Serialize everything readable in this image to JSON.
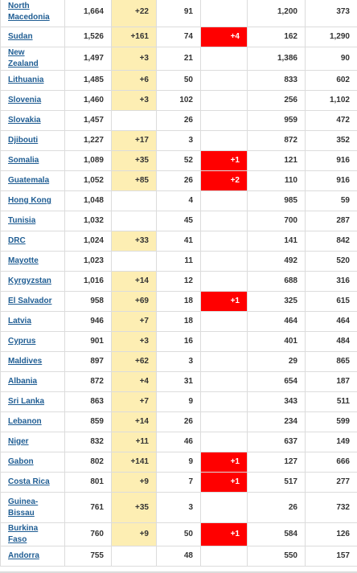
{
  "rows": [
    {
      "country": "North Macedonia",
      "total_cases": "1,664",
      "new_cases": "+22",
      "total_deaths": "91",
      "new_deaths": "",
      "total_recovered": "1,200",
      "active_cases": "373"
    },
    {
      "country": "Sudan",
      "total_cases": "1,526",
      "new_cases": "+161",
      "total_deaths": "74",
      "new_deaths": "+4",
      "total_recovered": "162",
      "active_cases": "1,290"
    },
    {
      "country": "New Zealand",
      "total_cases": "1,497",
      "new_cases": "+3",
      "total_deaths": "21",
      "new_deaths": "",
      "total_recovered": "1,386",
      "active_cases": "90"
    },
    {
      "country": "Lithuania",
      "total_cases": "1,485",
      "new_cases": "+6",
      "total_deaths": "50",
      "new_deaths": "",
      "total_recovered": "833",
      "active_cases": "602"
    },
    {
      "country": "Slovenia",
      "total_cases": "1,460",
      "new_cases": "+3",
      "total_deaths": "102",
      "new_deaths": "",
      "total_recovered": "256",
      "active_cases": "1,102"
    },
    {
      "country": "Slovakia",
      "total_cases": "1,457",
      "new_cases": "",
      "total_deaths": "26",
      "new_deaths": "",
      "total_recovered": "959",
      "active_cases": "472"
    },
    {
      "country": "Djibouti",
      "total_cases": "1,227",
      "new_cases": "+17",
      "total_deaths": "3",
      "new_deaths": "",
      "total_recovered": "872",
      "active_cases": "352"
    },
    {
      "country": "Somalia",
      "total_cases": "1,089",
      "new_cases": "+35",
      "total_deaths": "52",
      "new_deaths": "+1",
      "total_recovered": "121",
      "active_cases": "916"
    },
    {
      "country": "Guatemala",
      "total_cases": "1,052",
      "new_cases": "+85",
      "total_deaths": "26",
      "new_deaths": "+2",
      "total_recovered": "110",
      "active_cases": "916"
    },
    {
      "country": "Hong Kong",
      "total_cases": "1,048",
      "new_cases": "",
      "total_deaths": "4",
      "new_deaths": "",
      "total_recovered": "985",
      "active_cases": "59"
    },
    {
      "country": "Tunisia",
      "total_cases": "1,032",
      "new_cases": "",
      "total_deaths": "45",
      "new_deaths": "",
      "total_recovered": "700",
      "active_cases": "287"
    },
    {
      "country": "DRC",
      "total_cases": "1,024",
      "new_cases": "+33",
      "total_deaths": "41",
      "new_deaths": "",
      "total_recovered": "141",
      "active_cases": "842"
    },
    {
      "country": "Mayotte",
      "total_cases": "1,023",
      "new_cases": "",
      "total_deaths": "11",
      "new_deaths": "",
      "total_recovered": "492",
      "active_cases": "520"
    },
    {
      "country": "Kyrgyzstan",
      "total_cases": "1,016",
      "new_cases": "+14",
      "total_deaths": "12",
      "new_deaths": "",
      "total_recovered": "688",
      "active_cases": "316"
    },
    {
      "country": "El Salvador",
      "total_cases": "958",
      "new_cases": "+69",
      "total_deaths": "18",
      "new_deaths": "+1",
      "total_recovered": "325",
      "active_cases": "615"
    },
    {
      "country": "Latvia",
      "total_cases": "946",
      "new_cases": "+7",
      "total_deaths": "18",
      "new_deaths": "",
      "total_recovered": "464",
      "active_cases": "464"
    },
    {
      "country": "Cyprus",
      "total_cases": "901",
      "new_cases": "+3",
      "total_deaths": "16",
      "new_deaths": "",
      "total_recovered": "401",
      "active_cases": "484"
    },
    {
      "country": "Maldives",
      "total_cases": "897",
      "new_cases": "+62",
      "total_deaths": "3",
      "new_deaths": "",
      "total_recovered": "29",
      "active_cases": "865"
    },
    {
      "country": "Albania",
      "total_cases": "872",
      "new_cases": "+4",
      "total_deaths": "31",
      "new_deaths": "",
      "total_recovered": "654",
      "active_cases": "187"
    },
    {
      "country": "Sri Lanka",
      "total_cases": "863",
      "new_cases": "+7",
      "total_deaths": "9",
      "new_deaths": "",
      "total_recovered": "343",
      "active_cases": "511"
    },
    {
      "country": "Lebanon",
      "total_cases": "859",
      "new_cases": "+14",
      "total_deaths": "26",
      "new_deaths": "",
      "total_recovered": "234",
      "active_cases": "599"
    },
    {
      "country": "Niger",
      "total_cases": "832",
      "new_cases": "+11",
      "total_deaths": "46",
      "new_deaths": "",
      "total_recovered": "637",
      "active_cases": "149"
    },
    {
      "country": "Gabon",
      "total_cases": "802",
      "new_cases": "+141",
      "total_deaths": "9",
      "new_deaths": "+1",
      "total_recovered": "127",
      "active_cases": "666"
    },
    {
      "country": "Costa Rica",
      "total_cases": "801",
      "new_cases": "+9",
      "total_deaths": "7",
      "new_deaths": "+1",
      "total_recovered": "517",
      "active_cases": "277"
    },
    {
      "country": "Guinea-Bissau",
      "total_cases": "761",
      "new_cases": "+35",
      "total_deaths": "3",
      "new_deaths": "",
      "total_recovered": "26",
      "active_cases": "732"
    },
    {
      "country": "Burkina Faso",
      "total_cases": "760",
      "new_cases": "+9",
      "total_deaths": "50",
      "new_deaths": "+1",
      "total_recovered": "584",
      "active_cases": "126"
    },
    {
      "country": "Andorra",
      "total_cases": "755",
      "new_cases": "",
      "total_deaths": "48",
      "new_deaths": "",
      "total_recovered": "550",
      "active_cases": "157"
    }
  ],
  "colors": {
    "link": "#1f5d93",
    "new_cases_bg": "#fdeeb3",
    "new_deaths_bg": "#ff0000",
    "border": "#dcdcdc"
  }
}
